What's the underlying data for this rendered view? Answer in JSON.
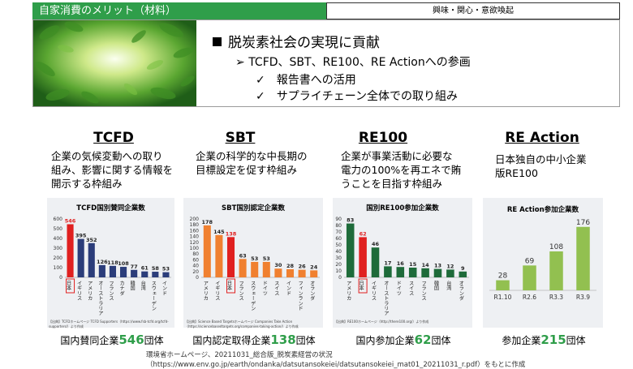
{
  "header": {
    "left_title": "自家消費のメリット（材料）",
    "right_title": "興味・関心・意欲喚起"
  },
  "banner": {
    "line1": "脱炭素社会の実現に貢献",
    "line2": "TCFD、SBT、RE100、RE Actionへの参画",
    "line3": "報告書への活用",
    "line4": "サプライチェーン全体での取り組み",
    "arrow": "➢",
    "check": "✓"
  },
  "columns": [
    {
      "title": "TCFD",
      "desc_lines": [
        "企業の気候変動への取り",
        "組み、影響に関する情報を",
        "開示する枠組み"
      ],
      "footer_pre": "国内賛同企業",
      "footer_num": "546",
      "footer_post": "団体"
    },
    {
      "title": "SBT",
      "desc_lines": [
        "企業の科学的な中長期の",
        "目標設定を促す枠組み"
      ],
      "footer_pre": "国内認定取得企業",
      "footer_num": "138",
      "footer_post": "団体"
    },
    {
      "title": "RE100",
      "desc_lines": [
        "企業が事業活動に必要な",
        "電力の100%を再エネで賄",
        "うことを目指す枠組み"
      ],
      "footer_pre": "国内参加企業",
      "footer_num": "62",
      "footer_post": "団体"
    },
    {
      "title": "RE Action",
      "desc_lines": [
        "日本独自の中小企業",
        "版RE100"
      ],
      "footer_pre": "参加企業",
      "footer_num": "215",
      "footer_post": "団体"
    }
  ],
  "source_note": "環境省ホームページ、20211031_総合版_脱炭素経営の状況（https://www.env.go.jp/earth/ondanka/datsutansokeiei/datsutansokeiei_mat01_20211031_r.pdf）をもとに作成",
  "colors": {
    "green": "#2f9e4a",
    "red": "#e02020",
    "navy": "#2b3d7a",
    "orange": "#f08030",
    "dkgreen": "#1e6b3a",
    "lime": "#92c050"
  },
  "chart_data": [
    {
      "type": "bar",
      "title": "TCFD国別賛同企業数",
      "categories": [
        "日本",
        "イギリス",
        "アメリカ",
        "オーストラリア",
        "フランス",
        "カナダ",
        "韓国",
        "台湾",
        "スウェーデン",
        "インド"
      ],
      "values": [
        546,
        395,
        352,
        126,
        118,
        108,
        77,
        61,
        58,
        53
      ],
      "ylim": [
        0,
        600
      ],
      "yticks": [
        0,
        100,
        200,
        300,
        400,
        500,
        600
      ],
      "highlight": "日本",
      "source": "【出典】TCFDホームページ TCFD Supporters（https://www.fsb-tcfd.org/tcfd-supporters/）より作成"
    },
    {
      "type": "bar",
      "title": "SBT国別認定企業数",
      "categories": [
        "アメリカ",
        "イギリス",
        "日本",
        "フランス",
        "スウェーデン",
        "ドイツ",
        "スイス",
        "インド",
        "フィンランド",
        "オランダ"
      ],
      "values": [
        178,
        145,
        138,
        63,
        53,
        53,
        30,
        28,
        26,
        24
      ],
      "ylim": [
        0,
        200
      ],
      "yticks": [
        0,
        20,
        40,
        60,
        80,
        100,
        120,
        140,
        160,
        180,
        200
      ],
      "highlight": "日本",
      "source": "【出典】Science Based Targetsホームページ Companies Take Action（https://sciencebasedtargets.org/companies-taking-action/）より作成"
    },
    {
      "type": "bar",
      "title": "国別RE100参加企業数",
      "categories": [
        "アメリカ",
        "日本",
        "イギリス",
        "オーストラリア",
        "ドイツ",
        "スイス",
        "フランス",
        "韓国",
        "台湾",
        "オランダ"
      ],
      "values": [
        83,
        62,
        46,
        17,
        16,
        15,
        14,
        13,
        12,
        9
      ],
      "ylim": [
        0,
        90
      ],
      "yticks": [
        0,
        10,
        20,
        30,
        40,
        50,
        60,
        70,
        80,
        90
      ],
      "highlight": "日本",
      "source": "【出典】RE100ホームページ（http://there100.org/）より作成"
    },
    {
      "type": "bar",
      "title": "RE Action参加企業数",
      "categories": [
        "R1.10",
        "R2.6",
        "R3.3",
        "R3.9"
      ],
      "values": [
        28,
        69,
        108,
        176
      ],
      "ylim": [
        0,
        180
      ]
    }
  ]
}
